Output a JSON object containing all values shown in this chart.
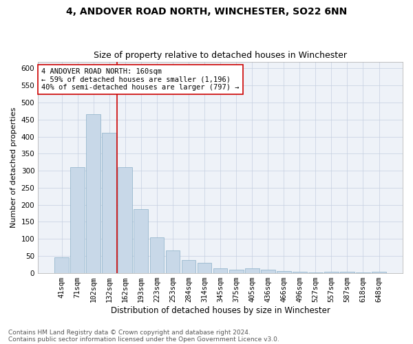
{
  "title1": "4, ANDOVER ROAD NORTH, WINCHESTER, SO22 6NN",
  "title2": "Size of property relative to detached houses in Winchester",
  "xlabel": "Distribution of detached houses by size in Winchester",
  "ylabel": "Number of detached properties",
  "categories": [
    "41sqm",
    "71sqm",
    "102sqm",
    "132sqm",
    "162sqm",
    "193sqm",
    "223sqm",
    "253sqm",
    "284sqm",
    "314sqm",
    "345sqm",
    "375sqm",
    "405sqm",
    "436sqm",
    "466sqm",
    "496sqm",
    "527sqm",
    "557sqm",
    "587sqm",
    "618sqm",
    "648sqm"
  ],
  "values": [
    45,
    310,
    465,
    412,
    310,
    187,
    104,
    65,
    38,
    30,
    13,
    10,
    13,
    10,
    6,
    4,
    1,
    4,
    4,
    1,
    3
  ],
  "bar_color": "#c8d8e8",
  "bar_edge_color": "#8aafc8",
  "grid_color": "#c5cfe0",
  "background_color": "#eef2f8",
  "vline_x_index": 3.48,
  "vline_color": "#cc0000",
  "annotation_line1": "4 ANDOVER ROAD NORTH: 160sqm",
  "annotation_line2": "← 59% of detached houses are smaller (1,196)",
  "annotation_line3": "40% of semi-detached houses are larger (797) →",
  "annotation_box_color": "#ffffff",
  "annotation_box_edge_color": "#cc0000",
  "ylim_max": 620,
  "yticks": [
    0,
    50,
    100,
    150,
    200,
    250,
    300,
    350,
    400,
    450,
    500,
    550,
    600
  ],
  "footer1": "Contains HM Land Registry data © Crown copyright and database right 2024.",
  "footer2": "Contains public sector information licensed under the Open Government Licence v3.0.",
  "title1_fontsize": 10,
  "title2_fontsize": 9,
  "xlabel_fontsize": 8.5,
  "ylabel_fontsize": 8,
  "tick_fontsize": 7.5,
  "annotation_fontsize": 7.5,
  "footer_fontsize": 6.5
}
